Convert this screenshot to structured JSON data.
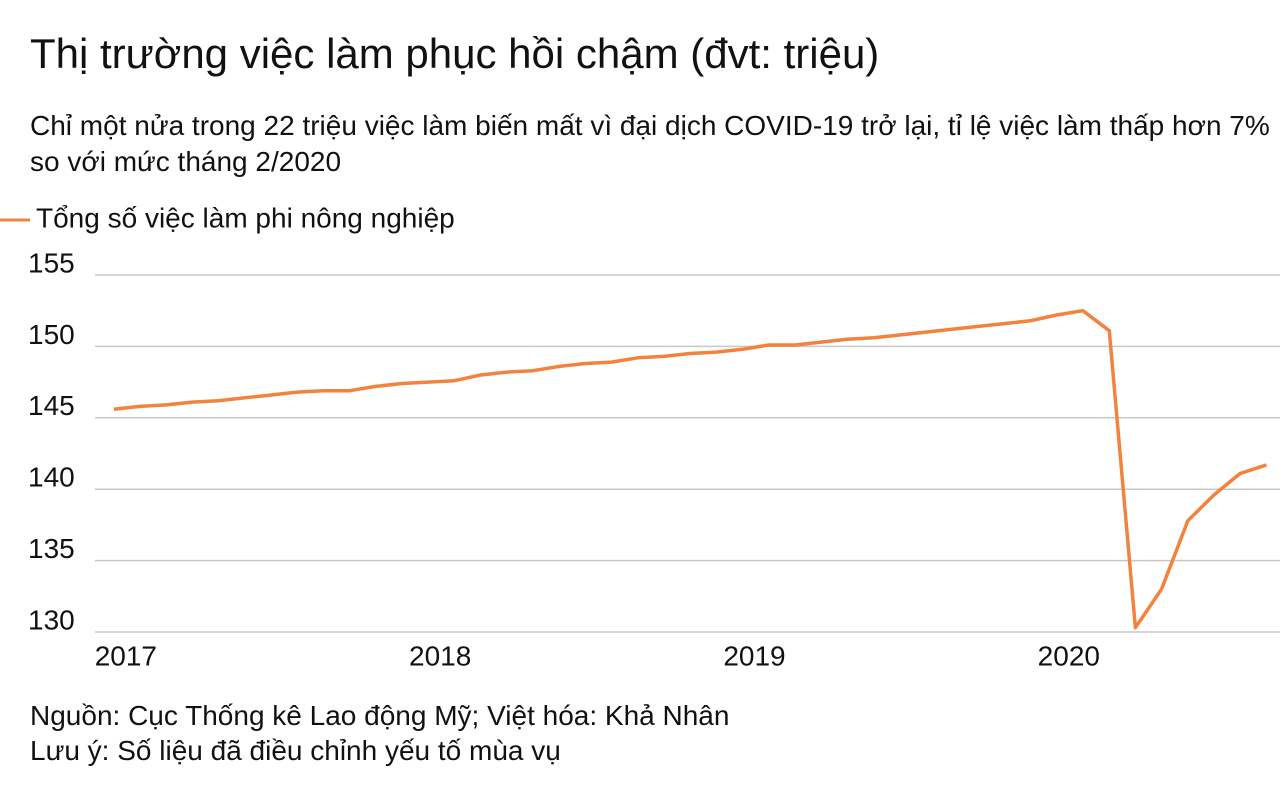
{
  "chart_data": {
    "type": "line",
    "title": "Thị trường việc làm phục hồi chậm (đvt: triệu)",
    "subtitle": "Chỉ một nửa trong 22 triệu việc làm biến mất vì đại dịch COVID-19 trở lại, tỉ lệ việc làm thấp hơn 7% so với mức tháng 2/2020",
    "source": "Nguồn: Cục Thống kê Lao động Mỹ; Việt hóa: Khả Nhân",
    "note": "Lưu ý: Số liệu đã điều chỉnh yếu tố mùa vụ",
    "x": [
      2017,
      2017.083,
      2017.167,
      2017.25,
      2017.333,
      2017.417,
      2017.5,
      2017.583,
      2017.667,
      2017.75,
      2017.833,
      2017.917,
      2018,
      2018.083,
      2018.167,
      2018.25,
      2018.333,
      2018.417,
      2018.5,
      2018.583,
      2018.667,
      2018.75,
      2018.833,
      2018.917,
      2019,
      2019.083,
      2019.167,
      2019.25,
      2019.333,
      2019.417,
      2019.5,
      2019.583,
      2019.667,
      2019.75,
      2019.833,
      2019.917,
      2020,
      2020.083,
      2020.167,
      2020.25,
      2020.333,
      2020.417,
      2020.5,
      2020.583,
      2020.667
    ],
    "series": [
      {
        "name": "Tổng số việc làm phi nông nghiệp",
        "color": "#f4823f",
        "values": [
          145.6,
          145.8,
          145.9,
          146.1,
          146.2,
          146.4,
          146.6,
          146.8,
          146.9,
          146.9,
          147.2,
          147.4,
          147.5,
          147.6,
          148.0,
          148.2,
          148.3,
          148.6,
          148.8,
          148.9,
          149.2,
          149.3,
          149.5,
          149.6,
          149.8,
          150.1,
          150.1,
          150.3,
          150.5,
          150.6,
          150.8,
          151.0,
          151.2,
          151.4,
          151.6,
          151.8,
          152.2,
          152.5,
          151.1,
          130.3,
          133.0,
          137.8,
          139.6,
          141.1,
          141.7
        ]
      }
    ],
    "xlim": [
      2016.94,
      2020.71
    ],
    "xticks": [
      2017,
      2018,
      2019,
      2020
    ],
    "ylim": [
      130,
      155
    ],
    "yticks": [
      130,
      135,
      140,
      145,
      150,
      155
    ],
    "grid": true
  }
}
